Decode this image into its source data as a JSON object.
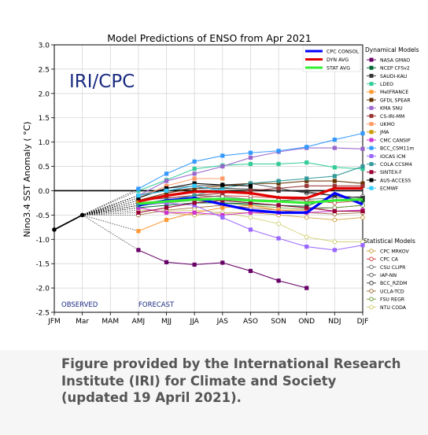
{
  "chart_data": {
    "type": "line",
    "title": "Model Predictions of ENSO from Apr 2021",
    "watermark": "IRI/CPC",
    "ylabel": "Nino3.4 SST Anomaly ( °C)",
    "xlabel": "",
    "categories": [
      "JFM",
      "Mar",
      "MAM",
      "AMJ",
      "MJJ",
      "JJA",
      "JAS",
      "ASO",
      "SON",
      "OND",
      "NDJ",
      "DJF"
    ],
    "ylim": [
      -2.5,
      3.0
    ],
    "yticks": [
      "3.0",
      "2.5",
      "2.0",
      "1.5",
      "1.0",
      "0.5",
      "0.0",
      "-0.5",
      "-1.0",
      "-1.5",
      "-2.0",
      "-2.5"
    ],
    "yticks_values": [
      3.0,
      2.5,
      2.0,
      1.5,
      1.0,
      0.5,
      0.0,
      -0.5,
      -1.0,
      -1.5,
      -2.0,
      -2.5
    ],
    "grid": true,
    "observed_label": "OBSERVED",
    "forecast_label": "FORECAST",
    "observed": [
      -0.8,
      -0.5
    ],
    "summary_series": [
      {
        "name": "CPC CONSOL",
        "color": "#0000ff",
        "values": [
          -0.3,
          -0.2,
          -0.15,
          -0.28,
          -0.4,
          -0.45,
          -0.45,
          -0.05,
          -0.28
        ]
      },
      {
        "name": "DYN AVG",
        "color": "#e00000",
        "values": [
          -0.22,
          -0.1,
          -0.02,
          -0.02,
          -0.05,
          -0.14,
          -0.15,
          0.05,
          0.05
        ]
      },
      {
        "name": "STAT AVG",
        "color": "#33ee33",
        "values": [
          -0.27,
          -0.22,
          -0.18,
          -0.17,
          -0.2,
          -0.22,
          -0.25,
          -0.2,
          -0.18
        ]
      }
    ],
    "dynamical_title": "Dynamical Models",
    "dynamical_series": [
      {
        "name": "NASA GMAO",
        "color": "#660066",
        "values": [
          -1.22,
          -1.47,
          -1.52,
          -1.48,
          -1.65,
          -1.85,
          -2.0,
          null,
          null
        ]
      },
      {
        "name": "NCEP CFSv2",
        "color": "#006633",
        "values": [
          -0.35,
          -0.3,
          -0.25,
          -0.25,
          -0.27,
          -0.3,
          -0.32,
          -0.1,
          -0.2
        ]
      },
      {
        "name": "SAUDI-KAU",
        "color": "#333333",
        "values": [
          -0.1,
          0.0,
          0.05,
          0.05,
          0.03,
          0.0,
          -0.02,
          -0.1,
          -0.15
        ]
      },
      {
        "name": "LDEO",
        "color": "#33cc99",
        "values": [
          0.0,
          0.22,
          0.45,
          0.52,
          0.55,
          0.55,
          0.58,
          0.48,
          0.45
        ]
      },
      {
        "name": "MetFRANCE",
        "color": "#ff9933",
        "values": [
          -0.83,
          -0.6,
          -0.45,
          -0.35,
          -0.3,
          -0.4,
          -0.4,
          null,
          null
        ]
      },
      {
        "name": "GFDL SPEAR",
        "color": "#663300",
        "values": [
          -0.2,
          -0.05,
          0.05,
          0.1,
          0.15,
          0.15,
          0.2,
          0.2,
          0.15
        ]
      },
      {
        "name": "KMA SNU",
        "color": "#9966cc",
        "values": [
          -0.1,
          0.2,
          0.35,
          0.5,
          0.68,
          0.8,
          0.88,
          0.88,
          0.86
        ]
      },
      {
        "name": "CS-IRI-MM",
        "color": "#993333",
        "values": [
          -0.2,
          -0.15,
          -0.1,
          -0.05,
          0.0,
          0.05,
          0.1,
          0.1,
          0.1
        ]
      },
      {
        "name": "UKMO",
        "color": "#ff9966",
        "values": [
          -0.15,
          0.1,
          0.25,
          0.25,
          null,
          null,
          null,
          null,
          null
        ]
      },
      {
        "name": "JMA",
        "color": "#cc9900",
        "values": [
          -0.25,
          -0.2,
          -0.15,
          -0.2,
          null,
          null,
          null,
          null,
          null
        ]
      },
      {
        "name": "CMC CANSIP",
        "color": "#cc33cc",
        "values": [
          -0.35,
          -0.45,
          -0.45,
          -0.5,
          -0.45,
          -0.45,
          -0.45,
          -0.42,
          -0.4
        ]
      },
      {
        "name": "BCC_CSM11m",
        "color": "#3399ff",
        "values": [
          0.04,
          0.35,
          0.6,
          0.72,
          0.78,
          0.82,
          0.9,
          1.05,
          1.18
        ]
      },
      {
        "name": "IOCAS ICM",
        "color": "#9966ff",
        "values": [
          -0.3,
          -0.25,
          -0.3,
          -0.55,
          -0.8,
          -0.98,
          -1.15,
          -1.22,
          -1.12
        ]
      },
      {
        "name": "COLA CCSM4",
        "color": "#339999",
        "values": [
          -0.3,
          -0.2,
          -0.1,
          0.05,
          0.15,
          0.2,
          0.25,
          0.3,
          0.5
        ]
      },
      {
        "name": "SINTEX-F",
        "color": "#990033",
        "values": [
          -0.45,
          -0.35,
          -0.25,
          -0.2,
          -0.25,
          -0.3,
          -0.35,
          -0.42,
          -0.42
        ]
      },
      {
        "name": "AUS-ACCESS",
        "color": "#000000",
        "values": [
          -0.15,
          0.05,
          0.15,
          0.12,
          0.1,
          null,
          null,
          null,
          null
        ]
      },
      {
        "name": "ECMWF",
        "color": "#33ccff",
        "values": [
          -0.1,
          0.0,
          0.1,
          0.0,
          null,
          null,
          null,
          null,
          null
        ]
      }
    ],
    "statistical_title": "Statistical Models",
    "statistical_series": [
      {
        "name": "CPC MRKOV",
        "color": "#cc9933",
        "values": [
          -0.35,
          -0.45,
          -0.5,
          -0.45,
          -0.45,
          -0.5,
          -0.55,
          -0.6,
          -0.55
        ]
      },
      {
        "name": "CPC CA",
        "color": "#cc3333",
        "values": [
          -0.3,
          -0.2,
          -0.15,
          -0.1,
          -0.12,
          -0.15,
          -0.2,
          -0.25,
          -0.2
        ]
      },
      {
        "name": "CSU CLIPR",
        "color": "#666666",
        "values": [
          -0.25,
          -0.2,
          -0.15,
          -0.2,
          -0.25,
          -0.3,
          -0.35,
          -0.35,
          -0.3
        ]
      },
      {
        "name": "IAP-NN",
        "color": "#555555",
        "values": [
          -0.2,
          -0.15,
          -0.1,
          -0.12,
          -0.18,
          -0.2,
          -0.18,
          -0.15,
          -0.12
        ]
      },
      {
        "name": "BCC_RZDM",
        "color": "#333333",
        "values": [
          -0.1,
          0.05,
          0.1,
          0.12,
          0.15,
          0.05,
          -0.05,
          -0.1,
          -0.15
        ]
      },
      {
        "name": "UCLA-TCD",
        "color": "#996633",
        "values": [
          -0.5,
          -0.4,
          -0.35,
          -0.3,
          -0.35,
          -0.4,
          -0.45,
          -0.48,
          -0.45
        ]
      },
      {
        "name": "FSU REGR",
        "color": "#669933",
        "values": [
          -0.3,
          -0.25,
          -0.2,
          -0.25,
          -0.3,
          -0.35,
          -0.38,
          -0.35,
          -0.3
        ]
      },
      {
        "name": "NTU CODA",
        "color": "#cccc66",
        "values": [
          -0.4,
          -0.42,
          -0.4,
          -0.45,
          -0.55,
          -0.68,
          -0.95,
          -1.05,
          -1.05
        ]
      }
    ]
  },
  "caption": {
    "line1": "Figure provided by the International Research",
    "line2": "Institute (IRI) for Climate and Society",
    "line3": "(updated 19 April 2021)."
  }
}
